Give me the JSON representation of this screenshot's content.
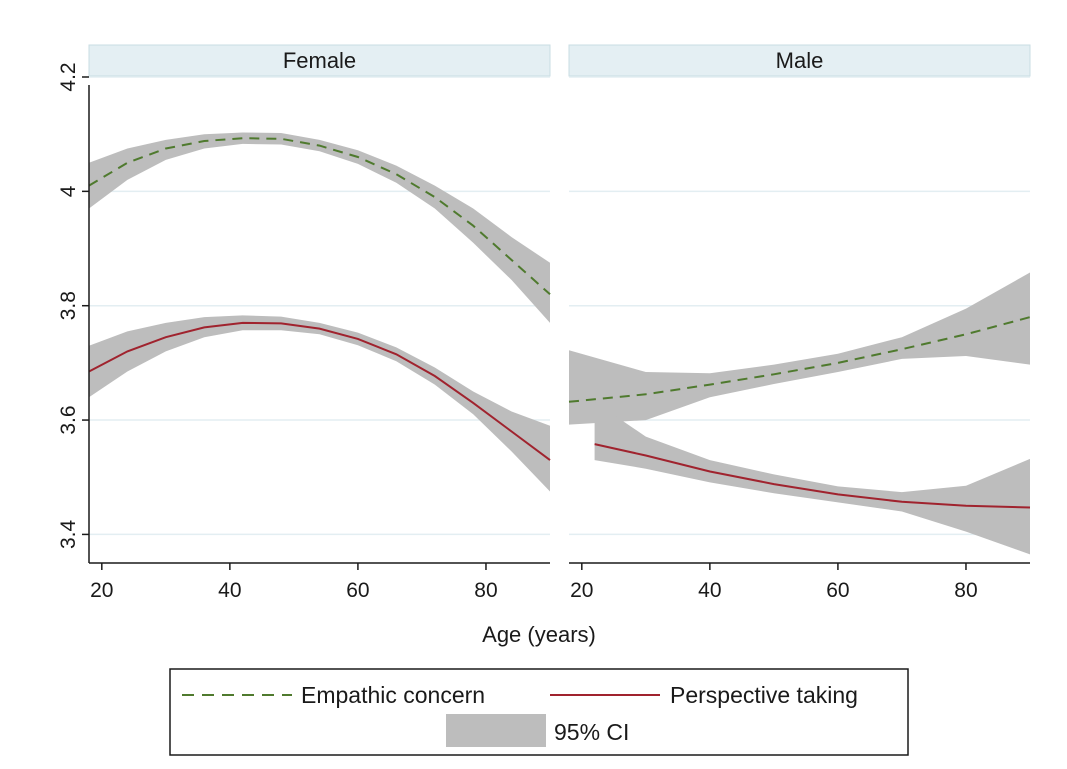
{
  "chart_data": {
    "type": "line",
    "xlabel": "Age (years)",
    "ylabel": "",
    "xlim": [
      18,
      90
    ],
    "ylim": [
      3.35,
      4.2
    ],
    "xticks": [
      20,
      40,
      60,
      80
    ],
    "yticks": [
      3.4,
      3.6,
      3.8,
      4,
      4.2
    ],
    "ytick_labels": [
      "3.4",
      "3.6",
      "3.8",
      "4",
      "4.2"
    ],
    "grid": true,
    "legend_position": "bottom",
    "colors": {
      "empathic": "#4f7a2e",
      "perspective": "#a0232e",
      "ci": "#bdbdbd",
      "strip": "#e4eff3",
      "grid": "#e3eef2"
    },
    "legend": {
      "empathic": "Empathic concern",
      "perspective": "Perspective taking",
      "ci": "95% CI"
    },
    "panels": [
      {
        "title": "Female",
        "series": [
          {
            "key": "empathic",
            "x": [
              18,
              24,
              30,
              36,
              42,
              48,
              54,
              60,
              66,
              72,
              78,
              84,
              90
            ],
            "y": [
              4.01,
              4.05,
              4.075,
              4.088,
              4.093,
              4.092,
              4.08,
              4.06,
              4.03,
              3.99,
              3.94,
              3.88,
              3.82
            ],
            "lower": [
              3.97,
              4.02,
              4.055,
              4.075,
              4.083,
              4.082,
              4.07,
              4.048,
              4.015,
              3.97,
              3.91,
              3.845,
              3.77
            ],
            "upper": [
              4.05,
              4.075,
              4.09,
              4.1,
              4.103,
              4.102,
              4.09,
              4.072,
              4.045,
              4.01,
              3.97,
              3.92,
              3.875
            ]
          },
          {
            "key": "perspective",
            "x": [
              18,
              24,
              30,
              36,
              42,
              48,
              54,
              60,
              66,
              72,
              78,
              84,
              90
            ],
            "y": [
              3.685,
              3.72,
              3.745,
              3.762,
              3.77,
              3.769,
              3.76,
              3.742,
              3.715,
              3.677,
              3.63,
              3.58,
              3.53
            ],
            "lower": [
              3.64,
              3.685,
              3.72,
              3.745,
              3.757,
              3.757,
              3.75,
              3.731,
              3.703,
              3.662,
              3.61,
              3.545,
              3.475
            ],
            "upper": [
              3.73,
              3.755,
              3.77,
              3.78,
              3.783,
              3.781,
              3.77,
              3.753,
              3.727,
              3.692,
              3.65,
              3.615,
              3.59
            ]
          }
        ]
      },
      {
        "title": "Male",
        "series": [
          {
            "key": "empathic",
            "x": [
              18,
              30,
              40,
              50,
              60,
              70,
              80,
              90
            ],
            "y": [
              3.632,
              3.645,
              3.662,
              3.68,
              3.7,
              3.724,
              3.75,
              3.78
            ],
            "lower": [
              3.592,
              3.6,
              3.64,
              3.663,
              3.684,
              3.707,
              3.712,
              3.697
            ],
            "upper": [
              3.722,
              3.684,
              3.682,
              3.697,
              3.716,
              3.745,
              3.795,
              3.858
            ]
          },
          {
            "key": "perspective",
            "x": [
              22,
              30,
              40,
              50,
              60,
              70,
              80,
              90
            ],
            "y": [
              3.558,
              3.538,
              3.51,
              3.488,
              3.47,
              3.457,
              3.45,
              3.447
            ],
            "lower": [
              3.53,
              3.515,
              3.491,
              3.472,
              3.456,
              3.44,
              3.405,
              3.365
            ],
            "upper": [
              3.632,
              3.571,
              3.53,
              3.505,
              3.484,
              3.474,
              3.485,
              3.532
            ]
          }
        ]
      }
    ]
  }
}
